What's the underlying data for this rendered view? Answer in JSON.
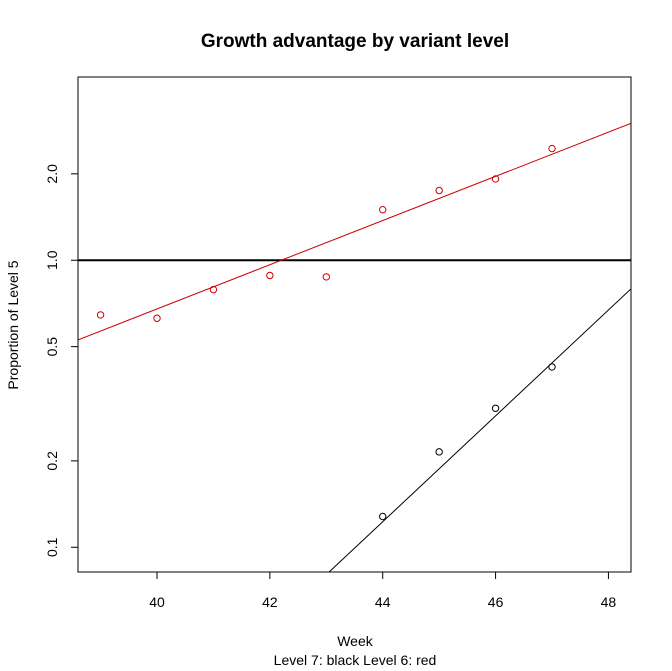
{
  "chart_data": {
    "type": "scatter",
    "title": "Growth advantage by variant level",
    "xlabel": "Week",
    "ylabel": "Proportion of Level 5",
    "subtitle": "Level 7: black    Level 6: red",
    "x_scale": "linear",
    "y_scale": "log",
    "xlim": [
      38.6,
      48.4
    ],
    "ylim": [
      0.082,
      4.35
    ],
    "x_ticks": [
      40,
      42,
      44,
      46,
      48
    ],
    "x_tick_labels": [
      "40",
      "42",
      "44",
      "46",
      "48"
    ],
    "y_ticks": [
      0.1,
      0.2,
      0.5,
      1.0,
      2.0
    ],
    "y_tick_labels": [
      "0.1",
      "0.2",
      "0.5",
      "1.0",
      "2.0"
    ],
    "reference_line": {
      "y": 1.0,
      "color": "#000000"
    },
    "series": [
      {
        "color": "#000000",
        "points": [
          {
            "x": 44,
            "y": 0.128
          },
          {
            "x": 45,
            "y": 0.215
          },
          {
            "x": 46,
            "y": 0.305
          },
          {
            "x": 47,
            "y": 0.425
          }
        ],
        "fit_line": [
          {
            "x": 43.05,
            "y": 0.082
          },
          {
            "x": 48.4,
            "y": 0.795
          }
        ]
      },
      {
        "color": "#cc0000",
        "points": [
          {
            "x": 39,
            "y": 0.645
          },
          {
            "x": 40,
            "y": 0.628
          },
          {
            "x": 41,
            "y": 0.79
          },
          {
            "x": 42,
            "y": 0.885
          },
          {
            "x": 43,
            "y": 0.875
          },
          {
            "x": 44,
            "y": 1.5
          },
          {
            "x": 45,
            "y": 1.75
          },
          {
            "x": 46,
            "y": 1.92
          },
          {
            "x": 47,
            "y": 2.45
          }
        ],
        "fit_line": [
          {
            "x": 38.6,
            "y": 0.528
          },
          {
            "x": 48.4,
            "y": 3.0
          }
        ]
      }
    ]
  }
}
